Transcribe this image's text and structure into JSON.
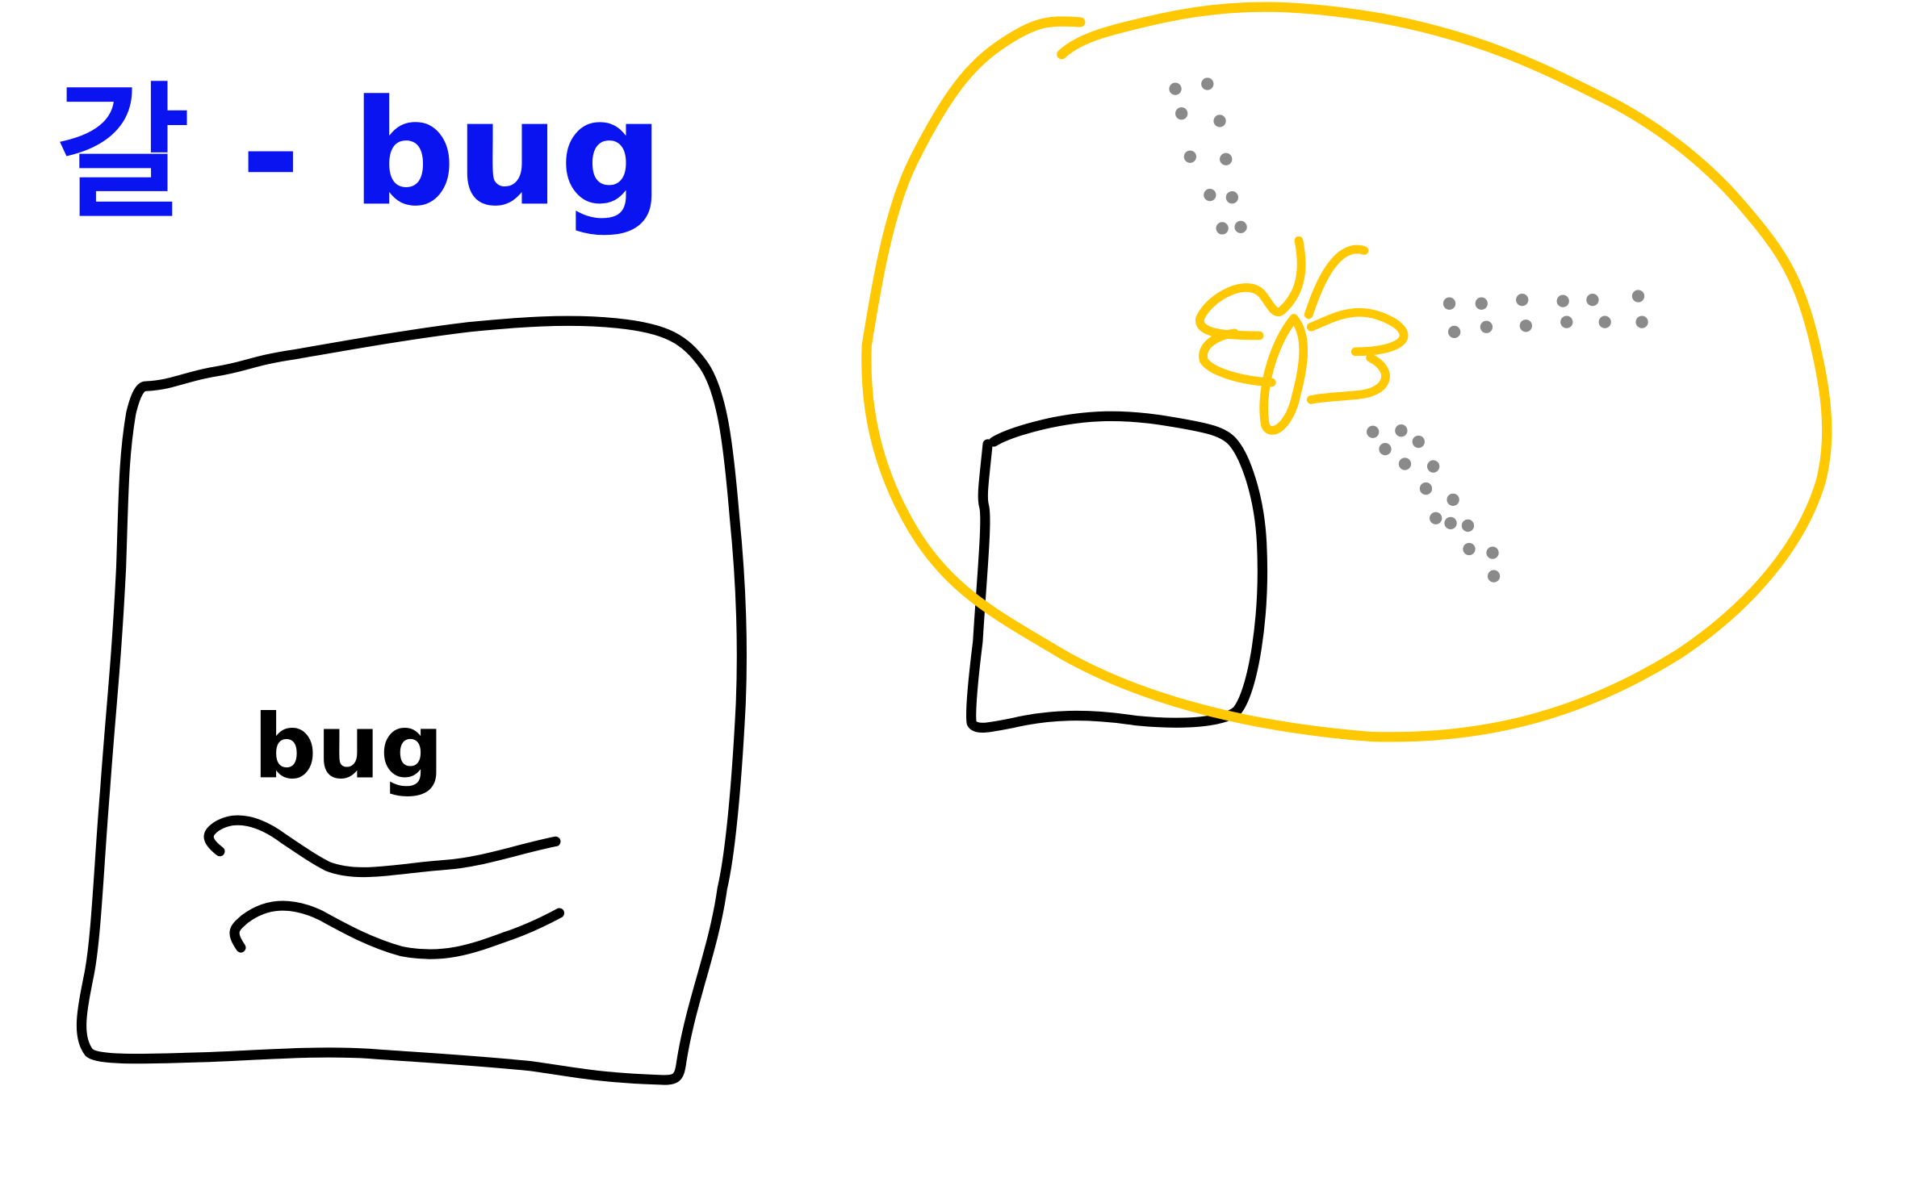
{
  "title": "갈 - bug",
  "card": {
    "label": "bug"
  }
}
